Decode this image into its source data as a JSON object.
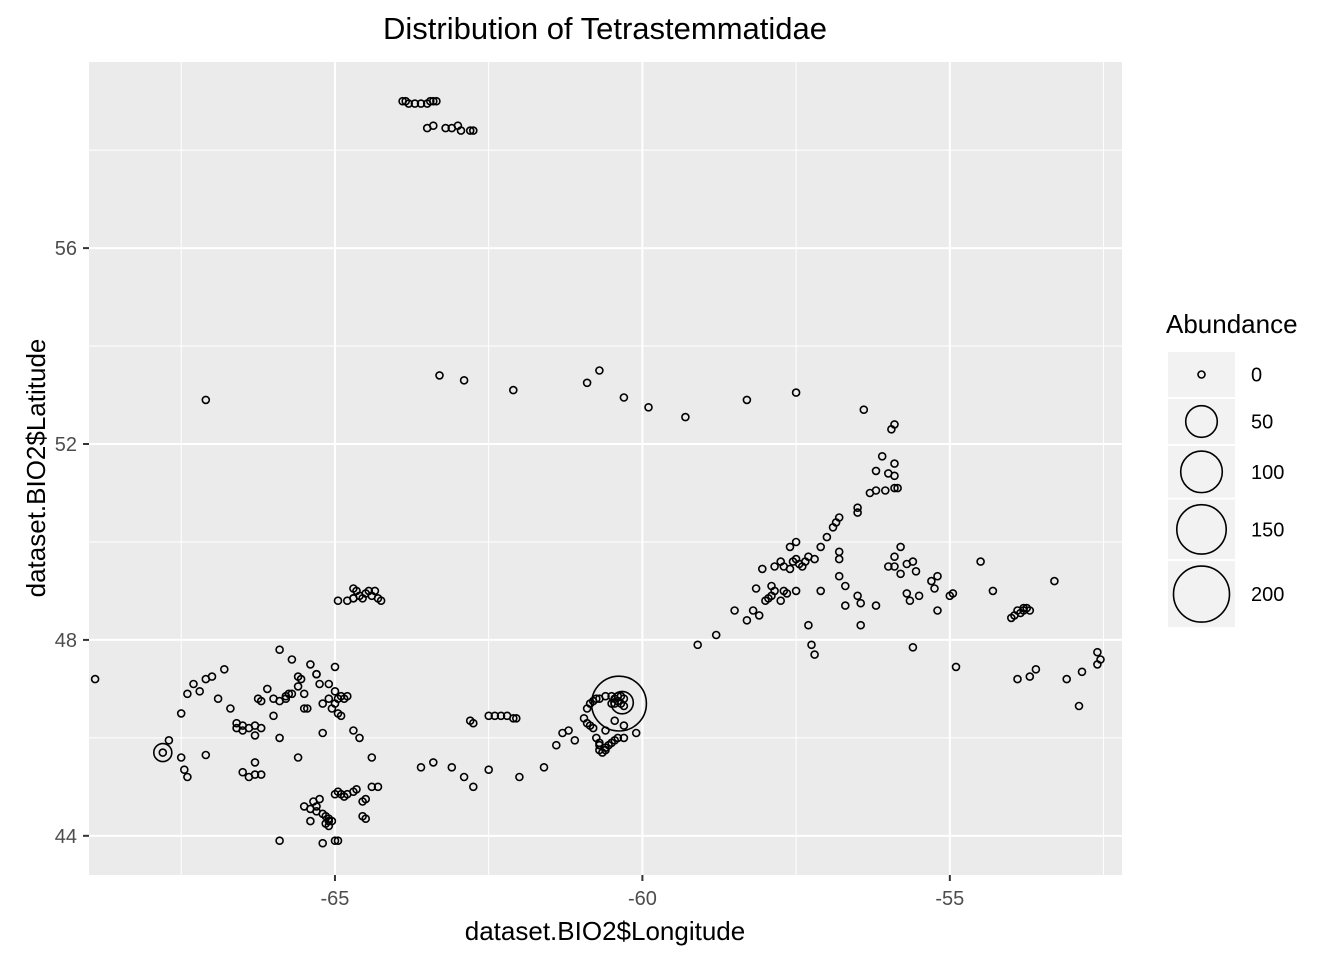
{
  "chart_data": {
    "type": "scatter",
    "title": "Distribution of Tetrastemmatidae",
    "xlabel": "dataset.BIO2$Longitude",
    "ylabel": "dataset.BIO2$Latitude",
    "xlim": [
      -69.0,
      -52.2
    ],
    "ylim": [
      43.2,
      59.8
    ],
    "x_ticks": [
      -65,
      -60,
      -55
    ],
    "x_tick_labels": [
      "-65",
      "-60",
      "-55"
    ],
    "y_ticks": [
      44,
      48,
      52,
      56
    ],
    "y_tick_labels": [
      "44",
      "48",
      "52",
      "56"
    ],
    "grid": true,
    "size_variable": "Abundance",
    "size_max": 200,
    "legend": {
      "title": "Abundance",
      "position": "right",
      "breaks": [
        0,
        50,
        100,
        150,
        200
      ],
      "labels": [
        "0",
        "50",
        "100",
        "150",
        "200"
      ]
    },
    "colors": {
      "panel": "#ebebeb",
      "grid": "#ffffff",
      "point_stroke": "#000000"
    },
    "points": [
      [
        -68.9,
        47.2,
        0
      ],
      [
        -67.8,
        45.7,
        10
      ],
      [
        -67.8,
        45.7,
        0
      ],
      [
        -67.7,
        45.95,
        0
      ],
      [
        -67.5,
        45.6,
        0
      ],
      [
        -67.45,
        45.35,
        0
      ],
      [
        -67.4,
        45.2,
        0
      ],
      [
        -67.5,
        46.5,
        0
      ],
      [
        -67.4,
        46.9,
        0
      ],
      [
        -67.3,
        47.1,
        0
      ],
      [
        -67.2,
        46.95,
        0
      ],
      [
        -67.1,
        47.2,
        0
      ],
      [
        -67.0,
        47.25,
        0
      ],
      [
        -66.8,
        47.4,
        0
      ],
      [
        -67.1,
        45.65,
        0
      ],
      [
        -66.9,
        46.8,
        0
      ],
      [
        -66.7,
        46.6,
        0
      ],
      [
        -66.6,
        46.3,
        0
      ],
      [
        -66.5,
        46.25,
        0
      ],
      [
        -66.4,
        46.2,
        0
      ],
      [
        -66.3,
        46.25,
        0
      ],
      [
        -66.6,
        46.2,
        0
      ],
      [
        -66.5,
        46.15,
        0
      ],
      [
        -66.3,
        46.05,
        0
      ],
      [
        -66.25,
        46.8,
        0
      ],
      [
        -66.2,
        46.75,
        0
      ],
      [
        -66.1,
        47.0,
        0
      ],
      [
        -66.0,
        46.8,
        0
      ],
      [
        -65.9,
        46.75,
        0
      ],
      [
        -65.8,
        46.8,
        0
      ],
      [
        -66.0,
        46.45,
        0
      ],
      [
        -66.2,
        46.2,
        0
      ],
      [
        -66.5,
        45.3,
        0
      ],
      [
        -66.4,
        45.2,
        0
      ],
      [
        -66.3,
        45.25,
        0
      ],
      [
        -66.2,
        45.25,
        0
      ],
      [
        -66.3,
        45.5,
        0
      ],
      [
        -65.9,
        46.0,
        0
      ],
      [
        -65.8,
        46.85,
        0
      ],
      [
        -65.75,
        46.9,
        0
      ],
      [
        -65.7,
        46.9,
        0
      ],
      [
        -65.6,
        47.05,
        0
      ],
      [
        -65.5,
        46.9,
        0
      ],
      [
        -65.9,
        47.8,
        0
      ],
      [
        -65.7,
        47.6,
        0
      ],
      [
        -65.6,
        47.25,
        0
      ],
      [
        -65.55,
        47.2,
        0
      ],
      [
        -65.5,
        46.6,
        0
      ],
      [
        -65.45,
        46.6,
        0
      ],
      [
        -65.4,
        47.5,
        0
      ],
      [
        -65.3,
        47.3,
        0
      ],
      [
        -65.6,
        45.6,
        0
      ],
      [
        -65.3,
        47.3,
        0
      ],
      [
        -65.25,
        47.1,
        0
      ],
      [
        -65.2,
        46.7,
        0
      ],
      [
        -65.1,
        47.1,
        0
      ],
      [
        -65.0,
        47.45,
        0
      ],
      [
        -65.0,
        46.95,
        0
      ],
      [
        -64.95,
        46.8,
        0
      ],
      [
        -64.9,
        46.85,
        0
      ],
      [
        -64.85,
        46.8,
        0
      ],
      [
        -64.8,
        46.85,
        0
      ],
      [
        -65.05,
        46.6,
        0
      ],
      [
        -64.95,
        46.5,
        0
      ],
      [
        -64.9,
        46.45,
        0
      ],
      [
        -65.0,
        46.7,
        0
      ],
      [
        -65.2,
        46.1,
        0
      ],
      [
        -64.7,
        46.15,
        0
      ],
      [
        -64.6,
        46.0,
        0
      ],
      [
        -65.1,
        46.8,
        0
      ],
      [
        -65.5,
        44.6,
        0
      ],
      [
        -65.4,
        44.55,
        0
      ],
      [
        -65.35,
        44.7,
        0
      ],
      [
        -65.3,
        44.6,
        0
      ],
      [
        -65.25,
        44.75,
        0
      ],
      [
        -65.2,
        44.45,
        0
      ],
      [
        -65.15,
        44.4,
        0
      ],
      [
        -65.1,
        44.35,
        0
      ],
      [
        -65.05,
        44.3,
        0
      ],
      [
        -65.15,
        44.25,
        0
      ],
      [
        -65.1,
        44.2,
        0
      ],
      [
        -65.0,
        44.85,
        0
      ],
      [
        -64.95,
        44.9,
        0
      ],
      [
        -64.9,
        44.85,
        0
      ],
      [
        -64.85,
        44.8,
        0
      ],
      [
        -64.8,
        44.85,
        0
      ],
      [
        -64.7,
        44.9,
        0
      ],
      [
        -64.65,
        44.95,
        0
      ],
      [
        -64.5,
        44.75,
        0
      ],
      [
        -64.55,
        44.7,
        0
      ],
      [
        -64.4,
        45.0,
        0
      ],
      [
        -64.3,
        45.0,
        0
      ],
      [
        -64.5,
        44.35,
        0
      ],
      [
        -64.55,
        44.4,
        0
      ],
      [
        -65.4,
        44.3,
        0
      ],
      [
        -65.3,
        44.5,
        0
      ],
      [
        -65.1,
        44.3,
        0
      ],
      [
        -65.0,
        43.9,
        0
      ],
      [
        -64.95,
        43.9,
        0
      ],
      [
        -65.2,
        43.85,
        0
      ],
      [
        -65.9,
        43.9,
        0
      ],
      [
        -64.4,
        45.6,
        0
      ],
      [
        -64.95,
        48.8,
        0
      ],
      [
        -64.8,
        48.8,
        0
      ],
      [
        -64.7,
        48.85,
        0
      ],
      [
        -64.6,
        48.9,
        0
      ],
      [
        -64.5,
        48.95,
        0
      ],
      [
        -64.4,
        48.9,
        0
      ],
      [
        -64.3,
        48.85,
        0
      ],
      [
        -64.25,
        48.8,
        0
      ],
      [
        -64.7,
        49.05,
        0
      ],
      [
        -64.65,
        49.0,
        0
      ],
      [
        -64.35,
        49.0,
        0
      ],
      [
        -64.45,
        49.0,
        0
      ],
      [
        -64.7,
        48.85,
        0
      ],
      [
        -64.55,
        48.85,
        0
      ],
      [
        -63.9,
        59.0,
        0
      ],
      [
        -63.8,
        58.95,
        0
      ],
      [
        -63.7,
        58.95,
        0
      ],
      [
        -63.6,
        58.95,
        0
      ],
      [
        -63.5,
        58.95,
        0
      ],
      [
        -63.45,
        59.0,
        0
      ],
      [
        -63.4,
        59.0,
        0
      ],
      [
        -63.35,
        59.0,
        0
      ],
      [
        -63.85,
        59.0,
        0
      ],
      [
        -63.5,
        58.45,
        0
      ],
      [
        -63.4,
        58.5,
        0
      ],
      [
        -63.2,
        58.45,
        0
      ],
      [
        -63.1,
        58.45,
        0
      ],
      [
        -63.0,
        58.5,
        0
      ],
      [
        -62.95,
        58.4,
        0
      ],
      [
        -62.8,
        58.4,
        0
      ],
      [
        -62.75,
        58.4,
        0
      ],
      [
        -63.4,
        45.5,
        0
      ],
      [
        -63.6,
        45.4,
        0
      ],
      [
        -63.1,
        45.4,
        0
      ],
      [
        -62.9,
        45.2,
        0
      ],
      [
        -62.75,
        45.0,
        0
      ],
      [
        -62.5,
        45.35,
        0
      ],
      [
        -62.5,
        46.45,
        0
      ],
      [
        -62.4,
        46.45,
        0
      ],
      [
        -62.3,
        46.45,
        0
      ],
      [
        -62.2,
        46.45,
        0
      ],
      [
        -62.1,
        46.4,
        0
      ],
      [
        -62.05,
        46.4,
        0
      ],
      [
        -62.8,
        46.35,
        0
      ],
      [
        -62.75,
        46.3,
        0
      ],
      [
        -62.0,
        45.2,
        0
      ],
      [
        -61.6,
        45.4,
        0
      ],
      [
        -61.4,
        45.85,
        0
      ],
      [
        -61.3,
        46.1,
        0
      ],
      [
        -61.2,
        46.15,
        0
      ],
      [
        -61.1,
        45.95,
        0
      ],
      [
        -60.95,
        46.4,
        0
      ],
      [
        -60.9,
        46.6,
        0
      ],
      [
        -60.85,
        46.7,
        0
      ],
      [
        -60.8,
        46.75,
        0
      ],
      [
        -60.75,
        46.8,
        0
      ],
      [
        -60.7,
        46.8,
        0
      ],
      [
        -60.6,
        46.85,
        0
      ],
      [
        -60.5,
        46.85,
        0
      ],
      [
        -60.45,
        46.8,
        0
      ],
      [
        -60.4,
        46.85,
        0
      ],
      [
        -60.35,
        46.85,
        0
      ],
      [
        -60.3,
        46.8,
        0
      ],
      [
        -60.4,
        46.75,
        0
      ],
      [
        -60.35,
        46.7,
        0
      ],
      [
        -60.3,
        46.65,
        0
      ],
      [
        -60.45,
        46.7,
        0
      ],
      [
        -60.5,
        46.7,
        0
      ],
      [
        -60.38,
        46.7,
        190
      ],
      [
        -60.33,
        46.72,
        20
      ],
      [
        -60.85,
        46.25,
        0
      ],
      [
        -60.8,
        46.2,
        0
      ],
      [
        -60.9,
        46.3,
        0
      ],
      [
        -60.75,
        46.0,
        0
      ],
      [
        -60.7,
        45.85,
        0
      ],
      [
        -60.7,
        45.75,
        0
      ],
      [
        -60.65,
        45.7,
        0
      ],
      [
        -60.6,
        45.75,
        0
      ],
      [
        -60.55,
        45.85,
        0
      ],
      [
        -60.5,
        45.9,
        0
      ],
      [
        -60.45,
        45.95,
        0
      ],
      [
        -60.4,
        46.0,
        0
      ],
      [
        -60.3,
        46.0,
        0
      ],
      [
        -60.3,
        46.25,
        0
      ],
      [
        -60.45,
        46.35,
        0
      ],
      [
        -60.6,
        46.15,
        0
      ],
      [
        -60.1,
        46.1,
        0
      ],
      [
        -60.7,
        45.9,
        0
      ],
      [
        -60.6,
        45.8,
        0
      ],
      [
        -63.3,
        53.4,
        0
      ],
      [
        -62.9,
        53.3,
        0
      ],
      [
        -62.1,
        53.1,
        0
      ],
      [
        -60.9,
        53.25,
        0
      ],
      [
        -60.7,
        53.5,
        0
      ],
      [
        -60.3,
        52.95,
        0
      ],
      [
        -59.9,
        52.75,
        0
      ],
      [
        -59.3,
        52.55,
        0
      ],
      [
        -58.3,
        52.9,
        0
      ],
      [
        -57.5,
        53.05,
        0
      ],
      [
        -56.4,
        52.7,
        0
      ],
      [
        -55.9,
        52.4,
        0
      ],
      [
        -55.95,
        52.3,
        0
      ],
      [
        -67.1,
        52.9,
        0
      ],
      [
        -59.1,
        47.9,
        0
      ],
      [
        -58.8,
        48.1,
        0
      ],
      [
        -58.5,
        48.6,
        0
      ],
      [
        -58.3,
        48.4,
        0
      ],
      [
        -58.2,
        48.6,
        0
      ],
      [
        -58.1,
        48.5,
        0
      ],
      [
        -58.15,
        49.05,
        0
      ],
      [
        -58.0,
        48.8,
        0
      ],
      [
        -57.95,
        48.85,
        0
      ],
      [
        -57.9,
        48.9,
        0
      ],
      [
        -57.85,
        49.0,
        0
      ],
      [
        -57.9,
        49.1,
        0
      ],
      [
        -58.05,
        49.45,
        0
      ],
      [
        -57.85,
        49.5,
        0
      ],
      [
        -57.75,
        49.6,
        0
      ],
      [
        -57.7,
        49.5,
        0
      ],
      [
        -57.6,
        49.45,
        0
      ],
      [
        -57.55,
        49.6,
        0
      ],
      [
        -57.5,
        49.65,
        0
      ],
      [
        -57.45,
        49.55,
        0
      ],
      [
        -57.4,
        49.5,
        0
      ],
      [
        -57.35,
        49.6,
        0
      ],
      [
        -57.3,
        49.7,
        0
      ],
      [
        -57.2,
        49.65,
        0
      ],
      [
        -57.6,
        49.9,
        0
      ],
      [
        -57.5,
        50.0,
        0
      ],
      [
        -57.1,
        49.9,
        0
      ],
      [
        -57.0,
        50.1,
        0
      ],
      [
        -56.9,
        50.3,
        0
      ],
      [
        -56.85,
        50.4,
        0
      ],
      [
        -56.8,
        50.5,
        0
      ],
      [
        -56.5,
        50.6,
        0
      ],
      [
        -56.5,
        50.7,
        0
      ],
      [
        -57.1,
        49.0,
        0
      ],
      [
        -57.3,
        48.3,
        0
      ],
      [
        -57.25,
        47.9,
        0
      ],
      [
        -57.2,
        47.7,
        0
      ],
      [
        -57.7,
        49.0,
        0
      ],
      [
        -57.5,
        49.0,
        0
      ],
      [
        -57.65,
        48.95,
        0
      ],
      [
        -57.75,
        48.8,
        0
      ],
      [
        -56.8,
        49.3,
        0
      ],
      [
        -56.7,
        49.1,
        0
      ],
      [
        -56.8,
        49.65,
        0
      ],
      [
        -56.8,
        49.8,
        0
      ],
      [
        -56.7,
        48.7,
        0
      ],
      [
        -56.5,
        48.9,
        0
      ],
      [
        -56.45,
        48.75,
        0
      ],
      [
        -56.45,
        48.3,
        0
      ],
      [
        -56.2,
        48.7,
        0
      ],
      [
        -56.2,
        51.45,
        0
      ],
      [
        -56.3,
        51.0,
        0
      ],
      [
        -56.2,
        51.05,
        0
      ],
      [
        -56.05,
        51.05,
        0
      ],
      [
        -56.0,
        51.4,
        0
      ],
      [
        -55.9,
        51.1,
        0
      ],
      [
        -55.9,
        51.6,
        0
      ],
      [
        -56.1,
        51.75,
        0
      ],
      [
        -55.9,
        51.35,
        0
      ],
      [
        -55.85,
        51.1,
        0
      ],
      [
        -56.0,
        49.5,
        0
      ],
      [
        -55.9,
        49.5,
        0
      ],
      [
        -55.8,
        49.35,
        0
      ],
      [
        -55.8,
        49.9,
        0
      ],
      [
        -55.7,
        49.55,
        0
      ],
      [
        -55.6,
        49.6,
        0
      ],
      [
        -55.55,
        49.4,
        0
      ],
      [
        -55.9,
        49.7,
        0
      ],
      [
        -55.7,
        48.95,
        0
      ],
      [
        -55.65,
        48.8,
        0
      ],
      [
        -55.5,
        48.9,
        0
      ],
      [
        -55.3,
        49.2,
        0
      ],
      [
        -55.2,
        49.3,
        0
      ],
      [
        -55.25,
        49.05,
        0
      ],
      [
        -55.2,
        48.6,
        0
      ],
      [
        -55.0,
        48.9,
        0
      ],
      [
        -54.95,
        48.95,
        0
      ],
      [
        -55.6,
        47.85,
        0
      ],
      [
        -54.9,
        47.45,
        0
      ],
      [
        -54.5,
        49.6,
        0
      ],
      [
        -54.3,
        49.0,
        0
      ],
      [
        -54.0,
        48.45,
        0
      ],
      [
        -53.95,
        48.5,
        0
      ],
      [
        -53.9,
        48.6,
        0
      ],
      [
        -53.85,
        48.55,
        0
      ],
      [
        -53.8,
        48.6,
        0
      ],
      [
        -53.75,
        48.65,
        0
      ],
      [
        -53.7,
        48.6,
        0
      ],
      [
        -53.8,
        48.65,
        0
      ],
      [
        -53.9,
        47.2,
        0
      ],
      [
        -53.7,
        47.25,
        0
      ],
      [
        -53.6,
        47.4,
        0
      ],
      [
        -53.3,
        49.2,
        0
      ],
      [
        -53.1,
        47.2,
        0
      ],
      [
        -52.85,
        47.35,
        0
      ],
      [
        -52.9,
        46.65,
        0
      ],
      [
        -52.6,
        47.5,
        0
      ],
      [
        -52.55,
        47.6,
        0
      ],
      [
        -52.6,
        47.75,
        0
      ]
    ]
  }
}
